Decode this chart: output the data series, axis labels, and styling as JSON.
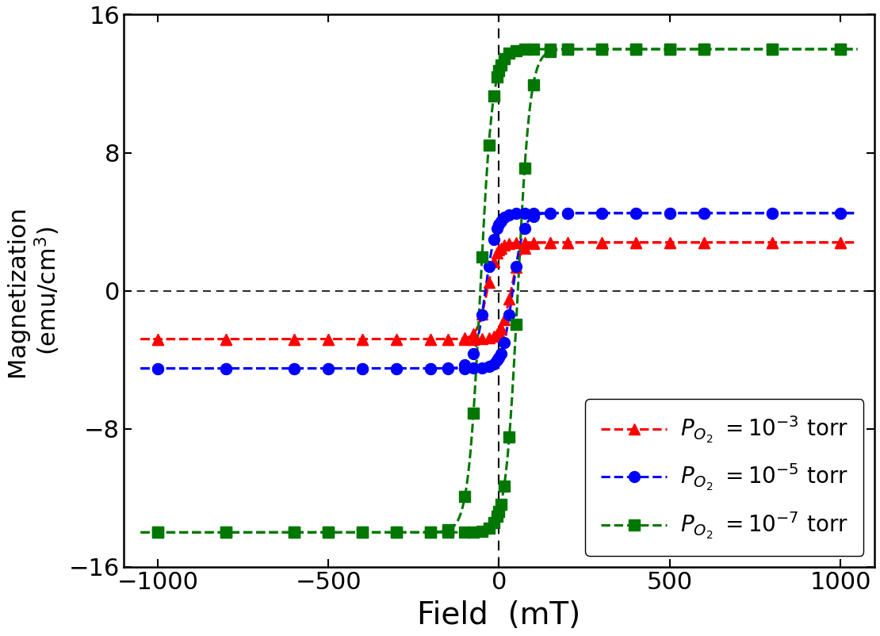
{
  "xlabel": "Field  (mT)",
  "ylabel": "Magnetization  (emu/cm³)",
  "xlim": [
    -1100,
    1100
  ],
  "ylim": [
    -16,
    16
  ],
  "xticks": [
    -1000,
    -500,
    0,
    500,
    1000
  ],
  "yticks": [
    -16,
    -8,
    0,
    8,
    16
  ],
  "background_color": "#ffffff",
  "vline_x": 0,
  "hline_y": 0,
  "series": [
    {
      "label": "P_{O_2} =10^{-3} torr",
      "color": "#ff0000",
      "marker": "^",
      "Ms": 2.8,
      "Hc": 35,
      "alpha": 0.035,
      "split": 0.18
    },
    {
      "label": "P_{O_2} =10^{-5} torr",
      "color": "#0000ff",
      "marker": "o",
      "Ms": 4.5,
      "Hc": 40,
      "alpha": 0.032,
      "split": 0.18
    },
    {
      "label": "P_{O_2} =10^{-7} torr",
      "color": "#007700",
      "marker": "s",
      "Ms": 14.0,
      "Hc": 55,
      "alpha": 0.028,
      "split": 0.2
    }
  ],
  "marker_H": [
    -1000,
    -800,
    -600,
    -500,
    -400,
    -300,
    -200,
    -150,
    -100,
    -75,
    -50,
    -30,
    -15,
    -5,
    0,
    5,
    15,
    30,
    50,
    75,
    100,
    150,
    200,
    300,
    400,
    500,
    600,
    800,
    1000
  ],
  "linewidth": 2.2,
  "markersize": 10,
  "legend_fontsize": 20,
  "tick_fontsize": 22,
  "xlabel_fontsize": 28,
  "ylabel_fontsize": 22,
  "figwidth": 11.1,
  "figheight": 8.02,
  "dpi": 100
}
